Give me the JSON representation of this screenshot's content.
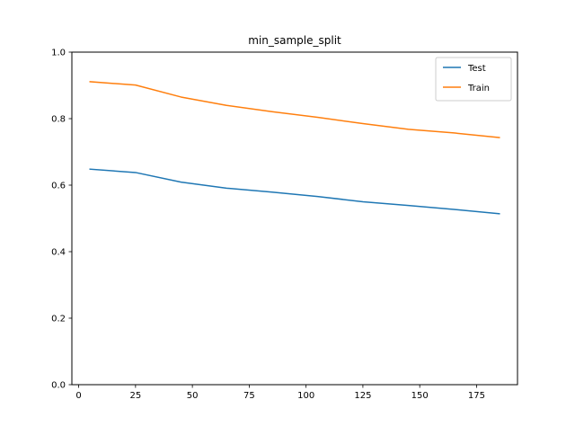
{
  "chart_data": {
    "type": "line",
    "title": "min_sample_split",
    "xlabel": "",
    "ylabel": "",
    "x": [
      5,
      25,
      45,
      65,
      85,
      105,
      125,
      145,
      165,
      185
    ],
    "series": [
      {
        "name": "Test",
        "color": "#1f77b4",
        "values": [
          0.648,
          0.638,
          0.609,
          0.591,
          0.579,
          0.566,
          0.55,
          0.539,
          0.527,
          0.514
        ]
      },
      {
        "name": "Train",
        "color": "#ff7f0e",
        "values": [
          0.911,
          0.901,
          0.865,
          0.84,
          0.821,
          0.804,
          0.785,
          0.768,
          0.757,
          0.743
        ]
      }
    ],
    "xlim": [
      -3,
      193
    ],
    "ylim": [
      0.0,
      1.0
    ],
    "xticks": [
      0,
      25,
      50,
      75,
      100,
      125,
      150,
      175
    ],
    "xtick_labels": [
      "0",
      "25",
      "50",
      "75",
      "100",
      "125",
      "150",
      "175"
    ],
    "yticks": [
      0.0,
      0.2,
      0.4,
      0.6,
      0.8,
      1.0
    ],
    "ytick_labels": [
      "0.0",
      "0.2",
      "0.4",
      "0.6",
      "0.8",
      "1.0"
    ],
    "grid": false,
    "legend_position": "top-right"
  }
}
